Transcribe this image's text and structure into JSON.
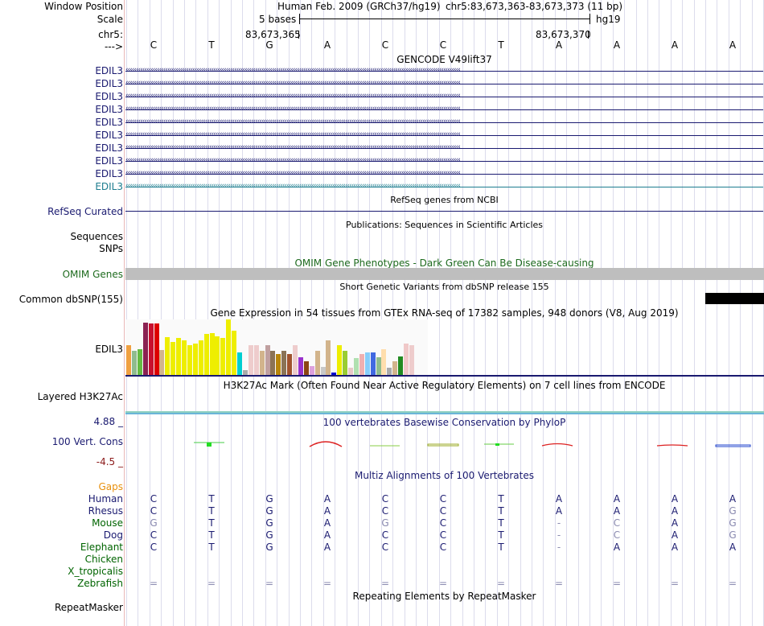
{
  "header": {
    "window_position_label": "Window Position",
    "scale_label": "Scale",
    "chrom_label": "chr5:",
    "strand_label": "--->",
    "assembly": "Human Feb. 2009 (GRCh37/hg19)",
    "position": "chr5:83,673,363-83,673,373 (11 bp)",
    "scale_text": "5 bases",
    "db": "hg19",
    "coord_left": "83,673,365",
    "coord_right": "83,673,370"
  },
  "sequence": [
    "C",
    "T",
    "G",
    "A",
    "C",
    "C",
    "T",
    "A",
    "A",
    "A",
    "A"
  ],
  "gencode": {
    "title": "GENCODE V49lift37",
    "rows": [
      "EDIL3",
      "EDIL3",
      "EDIL3",
      "EDIL3",
      "EDIL3",
      "EDIL3",
      "EDIL3",
      "EDIL3",
      "EDIL3",
      "EDIL3"
    ],
    "row_colors": [
      "#1a1a70",
      "#1a1a70",
      "#1a1a70",
      "#1a1a70",
      "#1a1a70",
      "#1a1a70",
      "#1a1a70",
      "#1a1a70",
      "#1a1a70",
      "#1d7d8f"
    ]
  },
  "refseq": {
    "title": "RefSeq genes from NCBI",
    "label": "RefSeq Curated"
  },
  "pubs": {
    "title": "Publications: Sequences in Scientific Articles",
    "labels": [
      "Sequences",
      "SNPs"
    ]
  },
  "omim": {
    "title": "OMIM Gene Phenotypes - Dark Green Can Be Disease-causing",
    "label": "OMIM Genes"
  },
  "dbsnp": {
    "title": "Short Genetic Variants from dbSNP release 155",
    "label": "Common dbSNP(155)"
  },
  "gtex": {
    "title": "Gene Expression in 54 tissues from GTEx RNA-seq of 17382 samples, 948 donors (V8, Aug 2019)",
    "label": "EDIL3",
    "bars": [
      {
        "v": 0.54,
        "c": "#f0a040"
      },
      {
        "v": 0.43,
        "c": "#8fbc8f"
      },
      {
        "v": 0.46,
        "c": "#66bb44"
      },
      {
        "v": 0.94,
        "c": "#8b2252"
      },
      {
        "v": 0.93,
        "c": "#c8102e"
      },
      {
        "v": 0.93,
        "c": "#dd0000"
      },
      {
        "v": 0.45,
        "c": "#d2b48c"
      },
      {
        "v": 0.68,
        "c": "#eeee00"
      },
      {
        "v": 0.6,
        "c": "#eeee00"
      },
      {
        "v": 0.67,
        "c": "#eeee00"
      },
      {
        "v": 0.62,
        "c": "#eeee00"
      },
      {
        "v": 0.53,
        "c": "#eeee00"
      },
      {
        "v": 0.57,
        "c": "#eeee00"
      },
      {
        "v": 0.62,
        "c": "#eeee00"
      },
      {
        "v": 0.74,
        "c": "#eeee00"
      },
      {
        "v": 0.76,
        "c": "#eeee00"
      },
      {
        "v": 0.7,
        "c": "#eeee00"
      },
      {
        "v": 0.66,
        "c": "#eeee00"
      },
      {
        "v": 1.0,
        "c": "#eeee00"
      },
      {
        "v": 0.8,
        "c": "#eeee00"
      },
      {
        "v": 0.4,
        "c": "#00ced1"
      },
      {
        "v": 0.08,
        "c": "#aaaaaa"
      },
      {
        "v": 0.54,
        "c": "#eecccc"
      },
      {
        "v": 0.54,
        "c": "#eecccc"
      },
      {
        "v": 0.44,
        "c": "#d2b48c"
      },
      {
        "v": 0.54,
        "c": "#c0a0a0"
      },
      {
        "v": 0.44,
        "c": "#8b7355"
      },
      {
        "v": 0.37,
        "c": "#b8860b"
      },
      {
        "v": 0.43,
        "c": "#8b7355"
      },
      {
        "v": 0.37,
        "c": "#a0522d"
      },
      {
        "v": 0.54,
        "c": "#eecccc"
      },
      {
        "v": 0.32,
        "c": "#9932cc"
      },
      {
        "v": 0.24,
        "c": "#8b4513"
      },
      {
        "v": 0.16,
        "c": "#dda0dd"
      },
      {
        "v": 0.44,
        "c": "#d2b48c"
      },
      {
        "v": 0.14,
        "c": "#c8c8c8"
      },
      {
        "v": 0.62,
        "c": "#d2b48c"
      },
      {
        "v": 0.05,
        "c": "#0000cd"
      },
      {
        "v": 0.54,
        "c": "#eeee00"
      },
      {
        "v": 0.43,
        "c": "#9acd32"
      },
      {
        "v": 0.13,
        "c": "#e8c8c8"
      },
      {
        "v": 0.3,
        "c": "#b0e0b0"
      },
      {
        "v": 0.37,
        "c": "#f0b0b0"
      },
      {
        "v": 0.4,
        "c": "#87cefa"
      },
      {
        "v": 0.4,
        "c": "#4169e1"
      },
      {
        "v": 0.32,
        "c": "#8fbc8f"
      },
      {
        "v": 0.46,
        "c": "#ffdead"
      },
      {
        "v": 0.13,
        "c": "#aaaaaa"
      },
      {
        "v": 0.25,
        "c": "#d2b48c"
      },
      {
        "v": 0.34,
        "c": "#228b22"
      },
      {
        "v": 0.56,
        "c": "#f0c8c8"
      },
      {
        "v": 0.54,
        "c": "#eecccc"
      }
    ]
  },
  "h3k27ac": {
    "title": "H3K27Ac Mark (Often Found Near Active Regulatory Elements) on 7 cell lines from ENCODE",
    "label": "Layered H3K27Ac"
  },
  "phylop": {
    "title": "100 vertebrates Basewise Conservation by PhyloP",
    "label": "100 Vert. Cons",
    "max": "4.88 _",
    "min": "-4.5 _"
  },
  "multiz": {
    "title": "Multiz Alignments of 100 Vertebrates",
    "gaps_label": "Gaps",
    "species": [
      {
        "name": "Human",
        "color": "#1a1a70",
        "seq": [
          "C",
          "T",
          "G",
          "A",
          "C",
          "C",
          "T",
          "A",
          "A",
          "A",
          "A"
        ],
        "dim": [
          0,
          0,
          0,
          0,
          0,
          0,
          0,
          0,
          0,
          0,
          0
        ]
      },
      {
        "name": "Rhesus",
        "color": "#1a1a70",
        "seq": [
          "C",
          "T",
          "G",
          "A",
          "C",
          "C",
          "T",
          "A",
          "A",
          "A",
          "G"
        ],
        "dim": [
          0,
          0,
          0,
          0,
          0,
          0,
          0,
          0,
          0,
          0,
          1
        ]
      },
      {
        "name": "Mouse",
        "color": "#006400",
        "seq": [
          "G",
          "T",
          "G",
          "A",
          "G",
          "C",
          "T",
          "-",
          "C",
          "A",
          "G"
        ],
        "dim": [
          1,
          0,
          0,
          0,
          1,
          0,
          0,
          1,
          1,
          0,
          1
        ]
      },
      {
        "name": "Dog",
        "color": "#1a1a70",
        "seq": [
          "C",
          "T",
          "G",
          "A",
          "C",
          "C",
          "T",
          "-",
          "C",
          "A",
          "G"
        ],
        "dim": [
          0,
          0,
          0,
          0,
          0,
          0,
          0,
          1,
          1,
          0,
          1
        ]
      },
      {
        "name": "Elephant",
        "color": "#006400",
        "seq": [
          "C",
          "T",
          "G",
          "A",
          "C",
          "C",
          "T",
          "-",
          "A",
          "A",
          "A"
        ],
        "dim": [
          0,
          0,
          0,
          0,
          0,
          0,
          0,
          1,
          0,
          0,
          0
        ]
      },
      {
        "name": "Chicken",
        "color": "#006400",
        "seq": [],
        "dim": []
      },
      {
        "name": "X_tropicalis",
        "color": "#006400",
        "seq": [],
        "dim": []
      },
      {
        "name": "Zebrafish",
        "color": "#006400",
        "seq": [
          "=",
          "=",
          "=",
          "=",
          "=",
          "=",
          "=",
          "=",
          "=",
          "=",
          "="
        ],
        "dim": [
          1,
          1,
          1,
          1,
          1,
          1,
          1,
          1,
          1,
          1,
          1
        ]
      }
    ]
  },
  "repeatmasker": {
    "title": "Repeating Elements by RepeatMasker",
    "label": "RepeatMasker"
  }
}
